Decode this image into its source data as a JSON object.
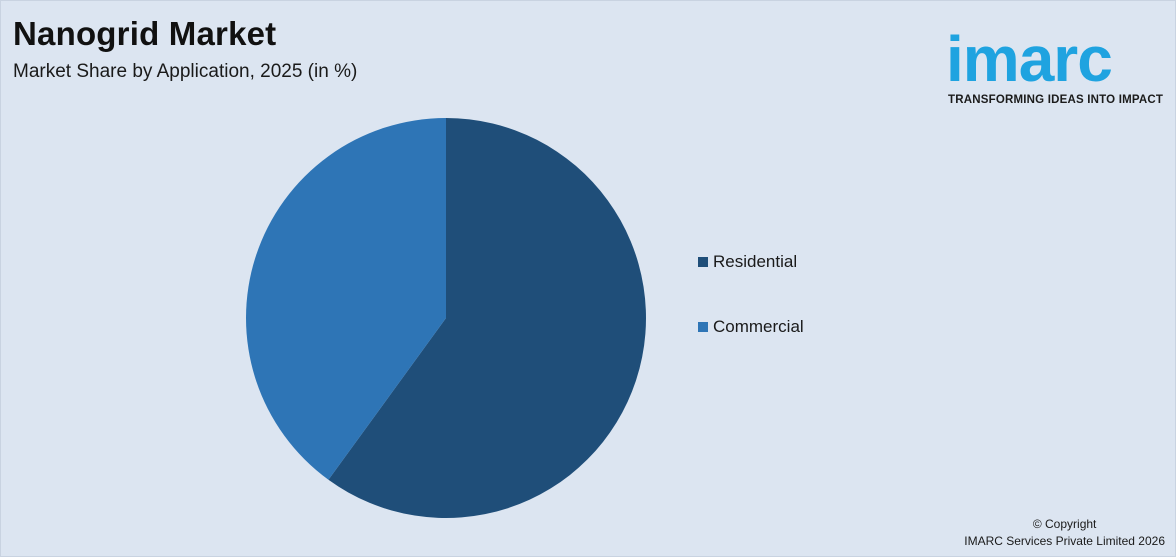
{
  "header": {
    "title": "Nanogrid Market",
    "subtitle": "Market Share by Application, 2025 (in %)"
  },
  "logo": {
    "wordmark": "imarc",
    "tagline": "TRANSFORMING IDEAS INTO IMPACT",
    "color": "#1fa3e0"
  },
  "chart_data": {
    "type": "pie",
    "title": "Nanogrid Market",
    "subtitle": "Market Share by Application, 2025 (in %)",
    "slices": [
      {
        "label": "Residential",
        "value": 60,
        "color": "#1f4e79"
      },
      {
        "label": "Commercial",
        "value": 40,
        "color": "#2e75b6"
      }
    ],
    "legend_position": "right",
    "start_angle_deg": 0,
    "direction": "clockwise"
  },
  "footer": {
    "copyright_line1": "© Copyright",
    "copyright_line2": "IMARC Services Private Limited 2026"
  }
}
